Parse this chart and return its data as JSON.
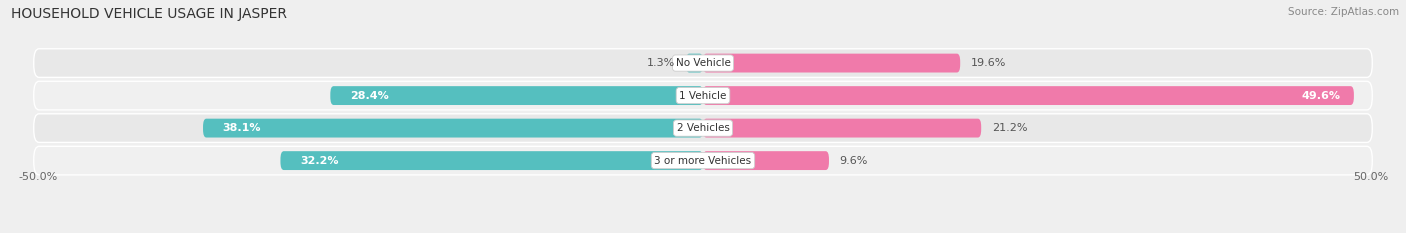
{
  "title": "HOUSEHOLD VEHICLE USAGE IN JASPER",
  "source": "Source: ZipAtlas.com",
  "categories": [
    "No Vehicle",
    "1 Vehicle",
    "2 Vehicles",
    "3 or more Vehicles"
  ],
  "owner_values": [
    1.3,
    28.4,
    38.1,
    32.2
  ],
  "renter_values": [
    19.6,
    49.6,
    21.2,
    9.6
  ],
  "owner_color": "#55bfbf",
  "renter_color": "#f07aaa",
  "bg_color": "#efefef",
  "row_bg_color": "#e2e2e2",
  "row_alt_color": "#f5f5f5",
  "xlim": 50.0,
  "title_fontsize": 10,
  "source_fontsize": 7.5,
  "label_fontsize": 8,
  "category_fontsize": 7.5,
  "bar_height": 0.58
}
